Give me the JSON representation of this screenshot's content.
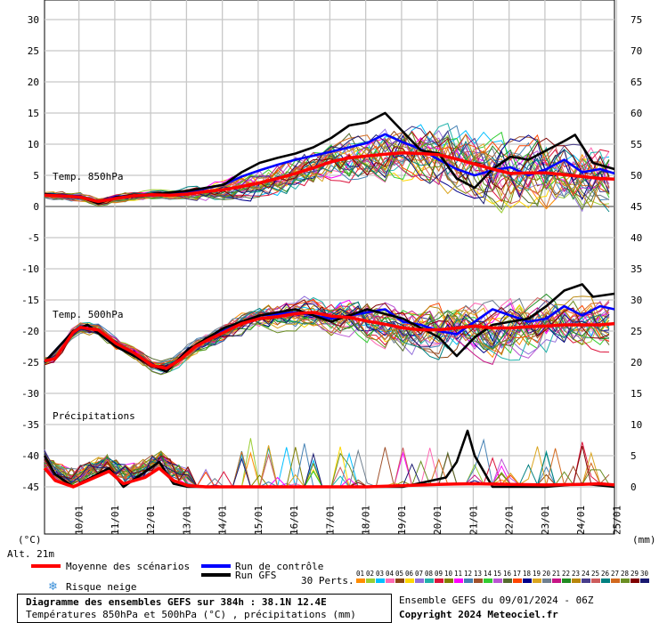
{
  "chart_data": {
    "type": "line",
    "title": "Diagramme des ensembles GEFS sur 384h : 38.1N 12.4E",
    "subtitle": "Températures 850hPa et 500hPa (°C) , précipitations (mm)",
    "left_axis_unit": "(°C)",
    "right_axis_unit": "(mm)",
    "altitude": "Alt. 21m",
    "left_ticks": [
      30,
      25,
      20,
      15,
      10,
      5,
      0,
      -5,
      -10,
      -15,
      -20,
      -25,
      -30,
      -35,
      -40,
      -45
    ],
    "right_ticks": [
      75,
      70,
      65,
      60,
      55,
      50,
      45,
      40,
      35,
      30,
      25,
      20,
      15,
      10,
      5,
      0
    ],
    "ylim": [
      -53,
      31
    ],
    "x_ticks": [
      "10/01",
      "11/01",
      "12/01",
      "13/01",
      "14/01",
      "15/01",
      "16/01",
      "17/01",
      "18/01",
      "19/01",
      "20/01",
      "21/01",
      "22/01",
      "23/01",
      "24/01",
      "25/01"
    ],
    "x_range_days": [
      0,
      15.9
    ],
    "first_tick_day": 0.96,
    "panel_labels": {
      "t850": "Temp. 850hPa",
      "t500": "Temp. 500hPa",
      "precip": "Précipitations"
    },
    "grid": true,
    "series": [
      {
        "name": "Moyenne des scénarios",
        "color": "#ff0000",
        "panel": "t850",
        "points": [
          [
            0,
            1.8
          ],
          [
            0.5,
            1.7
          ],
          [
            1,
            1.5
          ],
          [
            1.5,
            0.8
          ],
          [
            2,
            1.3
          ],
          [
            2.5,
            1.7
          ],
          [
            3,
            1.9
          ],
          [
            3.5,
            1.8
          ],
          [
            4,
            2.0
          ],
          [
            4.5,
            2.4
          ],
          [
            5,
            2.7
          ],
          [
            5.5,
            3.2
          ],
          [
            6,
            3.8
          ],
          [
            6.5,
            4.5
          ],
          [
            7,
            5.3
          ],
          [
            7.5,
            6.2
          ],
          [
            8,
            7.2
          ],
          [
            8.5,
            7.8
          ],
          [
            9,
            8.1
          ],
          [
            9.5,
            8.4
          ],
          [
            10,
            8.6
          ],
          [
            10.5,
            8.5
          ],
          [
            11,
            8.3
          ],
          [
            11.5,
            7.6
          ],
          [
            12,
            6.8
          ],
          [
            12.5,
            6.0
          ],
          [
            13,
            5.3
          ],
          [
            13.5,
            5.4
          ],
          [
            14,
            5.4
          ],
          [
            14.5,
            5.1
          ],
          [
            15,
            4.8
          ],
          [
            15.5,
            4.5
          ],
          [
            15.9,
            4.4
          ]
        ]
      },
      {
        "name": "Run de contrôle",
        "color": "#0000ff",
        "panel": "t850",
        "points": [
          [
            0,
            2.0
          ],
          [
            1,
            1.6
          ],
          [
            1.5,
            0.7
          ],
          [
            2,
            1.6
          ],
          [
            3,
            1.8
          ],
          [
            4,
            2.3
          ],
          [
            5,
            3.5
          ],
          [
            5.5,
            4.8
          ],
          [
            6,
            5.8
          ],
          [
            6.5,
            6.7
          ],
          [
            7,
            7.5
          ],
          [
            8,
            8.8
          ],
          [
            9,
            10.2
          ],
          [
            9.5,
            11.6
          ],
          [
            10,
            10.3
          ],
          [
            10.5,
            9.2
          ],
          [
            11,
            7.5
          ],
          [
            11.5,
            6.0
          ],
          [
            12,
            5.0
          ],
          [
            12.5,
            5.8
          ],
          [
            13,
            6.3
          ],
          [
            13.5,
            5.0
          ],
          [
            14,
            6.0
          ],
          [
            14.5,
            7.5
          ],
          [
            15,
            5.5
          ],
          [
            15.5,
            6.0
          ],
          [
            15.9,
            5.3
          ]
        ]
      },
      {
        "name": "Run GFS",
        "color": "#000000",
        "panel": "t850",
        "points": [
          [
            0,
            2.0
          ],
          [
            1,
            1.5
          ],
          [
            1.5,
            0.5
          ],
          [
            2,
            1.5
          ],
          [
            3,
            2.0
          ],
          [
            4,
            2.5
          ],
          [
            5,
            3.5
          ],
          [
            5.5,
            5.5
          ],
          [
            6,
            7.0
          ],
          [
            6.5,
            7.8
          ],
          [
            7,
            8.5
          ],
          [
            7.5,
            9.5
          ],
          [
            8,
            11.0
          ],
          [
            8.5,
            13.0
          ],
          [
            9,
            13.5
          ],
          [
            9.5,
            15.0
          ],
          [
            10,
            12.0
          ],
          [
            10.5,
            9.0
          ],
          [
            11,
            8.5
          ],
          [
            11.5,
            4.5
          ],
          [
            12,
            3.0
          ],
          [
            12.5,
            6.0
          ],
          [
            13,
            8.0
          ],
          [
            13.5,
            7.5
          ],
          [
            14,
            9.0
          ],
          [
            14.5,
            10.5
          ],
          [
            14.8,
            11.5
          ],
          [
            15.3,
            7.0
          ],
          [
            15.9,
            6.0
          ]
        ]
      },
      {
        "name": "Moyenne des scénarios",
        "color": "#ff0000",
        "panel": "t500",
        "points": [
          [
            0,
            -24.8
          ],
          [
            0.3,
            -24.4
          ],
          [
            0.8,
            -20.2
          ],
          [
            1,
            -19.4
          ],
          [
            1.2,
            -19.6
          ],
          [
            1.5,
            -19.8
          ],
          [
            2,
            -22.0
          ],
          [
            2.5,
            -23.5
          ],
          [
            3,
            -25.5
          ],
          [
            3.4,
            -26.0
          ],
          [
            3.8,
            -24.5
          ],
          [
            4.2,
            -22.5
          ],
          [
            4.6,
            -21.3
          ],
          [
            5,
            -20.2
          ],
          [
            5.5,
            -18.8
          ],
          [
            6,
            -18.0
          ],
          [
            6.5,
            -17.7
          ],
          [
            7,
            -17.2
          ],
          [
            7.5,
            -17.0
          ],
          [
            8,
            -17.6
          ],
          [
            8.5,
            -17.8
          ],
          [
            9,
            -18.4
          ],
          [
            9.5,
            -18.9
          ],
          [
            10,
            -19.5
          ],
          [
            10.5,
            -19.8
          ],
          [
            11,
            -19.8
          ],
          [
            11.5,
            -19.5
          ],
          [
            12,
            -19.2
          ],
          [
            12.5,
            -19.5
          ],
          [
            13,
            -19.5
          ],
          [
            13.5,
            -19.3
          ],
          [
            14,
            -19.2
          ],
          [
            14.5,
            -19.0
          ],
          [
            15,
            -19.0
          ],
          [
            15.5,
            -19.0
          ],
          [
            15.9,
            -18.8
          ]
        ]
      },
      {
        "name": "Run de contrôle",
        "color": "#0000ff",
        "panel": "t500",
        "points": [
          [
            0,
            -25.0
          ],
          [
            0.8,
            -20.0
          ],
          [
            1.2,
            -19.0
          ],
          [
            2,
            -22.5
          ],
          [
            3,
            -25.5
          ],
          [
            3.4,
            -26.5
          ],
          [
            4,
            -23.0
          ],
          [
            5,
            -20.0
          ],
          [
            6,
            -17.5
          ],
          [
            7,
            -17.0
          ],
          [
            8,
            -18.0
          ],
          [
            9,
            -17.0
          ],
          [
            9.5,
            -16.5
          ],
          [
            10,
            -18.5
          ],
          [
            10.5,
            -19.0
          ],
          [
            11,
            -20.0
          ],
          [
            11.5,
            -20.5
          ],
          [
            12,
            -18.5
          ],
          [
            12.5,
            -16.5
          ],
          [
            13,
            -17.5
          ],
          [
            13.5,
            -18.5
          ],
          [
            14,
            -18.0
          ],
          [
            14.5,
            -16.0
          ],
          [
            15,
            -17.5
          ],
          [
            15.5,
            -16.0
          ],
          [
            15.9,
            -16.5
          ]
        ]
      },
      {
        "name": "Run GFS",
        "color": "#000000",
        "panel": "t500",
        "points": [
          [
            0,
            -25.0
          ],
          [
            0.8,
            -20.0
          ],
          [
            1.2,
            -19.0
          ],
          [
            2,
            -22.5
          ],
          [
            3,
            -25.5
          ],
          [
            3.4,
            -26.5
          ],
          [
            4,
            -23.0
          ],
          [
            5,
            -19.5
          ],
          [
            6,
            -17.5
          ],
          [
            6.5,
            -17.0
          ],
          [
            7,
            -16.5
          ],
          [
            7.5,
            -17.5
          ],
          [
            8,
            -18.5
          ],
          [
            9,
            -16.5
          ],
          [
            10,
            -18.0
          ],
          [
            10.5,
            -19.5
          ],
          [
            11,
            -21.0
          ],
          [
            11.5,
            -24.0
          ],
          [
            12,
            -21.0
          ],
          [
            12.5,
            -19.0
          ],
          [
            13,
            -18.5
          ],
          [
            13.5,
            -18.0
          ],
          [
            14,
            -16.0
          ],
          [
            14.5,
            -13.5
          ],
          [
            15,
            -12.5
          ],
          [
            15.3,
            -14.5
          ],
          [
            15.9,
            -14.0
          ]
        ]
      },
      {
        "name": "Moyenne des scénarios",
        "color": "#ff0000",
        "panel": "precip",
        "points": [
          [
            0,
            -42
          ],
          [
            0.3,
            -44
          ],
          [
            0.8,
            -45
          ],
          [
            1.2,
            -44
          ],
          [
            1.8,
            -42.5
          ],
          [
            2.2,
            -44.5
          ],
          [
            2.8,
            -43.5
          ],
          [
            3.2,
            -42
          ],
          [
            3.6,
            -44
          ],
          [
            4,
            -44.8
          ],
          [
            4.5,
            -45
          ],
          [
            5,
            -45
          ],
          [
            6,
            -45
          ],
          [
            7,
            -45
          ],
          [
            8,
            -45
          ],
          [
            9,
            -45
          ],
          [
            10,
            -44.8
          ],
          [
            11,
            -44.6
          ],
          [
            12,
            -44.5
          ],
          [
            13,
            -44.6
          ],
          [
            14,
            -44.7
          ],
          [
            15,
            -44.6
          ],
          [
            15.5,
            -44.5
          ],
          [
            15.9,
            -44.7
          ]
        ]
      },
      {
        "name": "Run GFS",
        "color": "#000000",
        "panel": "precip",
        "points": [
          [
            0,
            -40
          ],
          [
            0.3,
            -43
          ],
          [
            0.8,
            -45
          ],
          [
            1.8,
            -42
          ],
          [
            2.2,
            -45
          ],
          [
            3.2,
            -41
          ],
          [
            3.6,
            -44.5
          ],
          [
            4,
            -45
          ],
          [
            6,
            -45
          ],
          [
            10,
            -45
          ],
          [
            11.2,
            -43.5
          ],
          [
            11.5,
            -41
          ],
          [
            11.8,
            -36
          ],
          [
            12,
            -40
          ],
          [
            12.5,
            -45
          ],
          [
            13,
            -45
          ],
          [
            14,
            -45
          ],
          [
            15,
            -44.5
          ],
          [
            15.9,
            -45
          ]
        ]
      }
    ],
    "ensemble_members": 30,
    "member_colors": [
      "#ff8c00",
      "#9acd32",
      "#00bfff",
      "#ff69b4",
      "#8b4513",
      "#ffd700",
      "#9370db",
      "#20b2aa",
      "#dc143c",
      "#808000",
      "#ff00ff",
      "#4682b4",
      "#a0522d",
      "#32cd32",
      "#ba55d3",
      "#556b2f",
      "#ff4500",
      "#00008b",
      "#daa520",
      "#708090",
      "#c71585",
      "#228b22",
      "#b8860b",
      "#483d8b",
      "#cd5c5c",
      "#008080",
      "#d2691e",
      "#6b8e23",
      "#800000",
      "#191970"
    ]
  },
  "legend": {
    "mean": "Moyenne des scénarios",
    "control": "Run de contrôle",
    "gfs": "Run GFS",
    "snow": "Risque neige",
    "perts_label": "30 Perts.",
    "pert_numbers": [
      "01",
      "02",
      "03",
      "04",
      "05",
      "06",
      "07",
      "08",
      "09",
      "10",
      "11",
      "12",
      "13",
      "14",
      "15",
      "16",
      "17",
      "18",
      "19",
      "20",
      "21",
      "22",
      "23",
      "24",
      "25",
      "26",
      "27",
      "28",
      "29",
      "30"
    ],
    "colors": {
      "mean": "#ff0000",
      "control": "#0000ff",
      "gfs": "#000000",
      "snow": "#3a8fd8"
    }
  },
  "footer": {
    "title": "Diagramme des ensembles GEFS sur 384h : 38.1N 12.4E",
    "subtitle": "Températures 850hPa et 500hPa (°C) , précipitations (mm)",
    "run_info": "Ensemble GEFS du 09/01/2024 - 06Z",
    "copyright": "Copyright 2024 Meteociel.fr"
  }
}
